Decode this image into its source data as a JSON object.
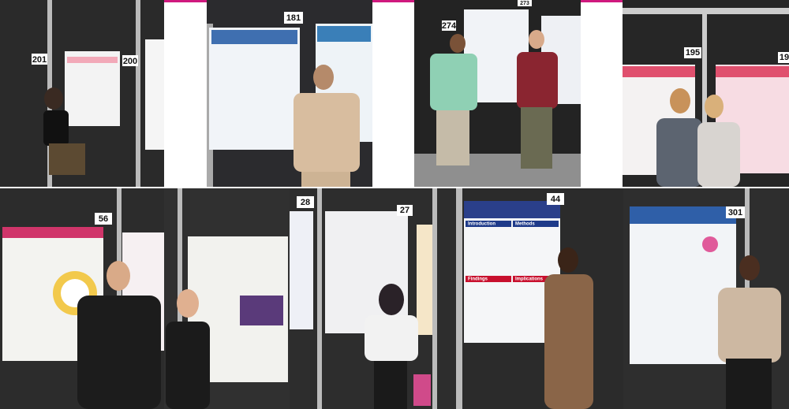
{
  "panels": [
    {
      "board_numbers": [
        "201",
        "200"
      ]
    },
    {
      "board_numbers": [
        "181"
      ]
    },
    {
      "board_numbers": [
        "274",
        "273"
      ]
    },
    {
      "board_numbers": [
        "195",
        "19"
      ]
    },
    {
      "board_numbers": [
        "56"
      ]
    },
    {
      "board_numbers": []
    },
    {
      "board_numbers": [
        "28",
        "27"
      ]
    },
    {
      "board_numbers": [
        "44"
      ],
      "poster_headings": [
        "Introduction",
        "Methods",
        "Findings",
        "Implications"
      ]
    },
    {
      "board_numbers": [
        "301"
      ]
    }
  ]
}
